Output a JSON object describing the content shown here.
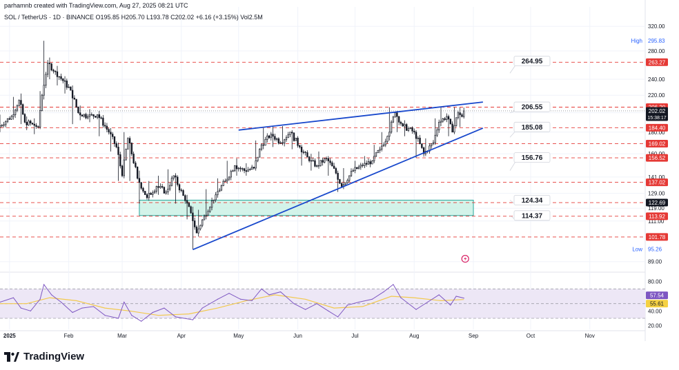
{
  "header": {
    "created_by": "parhamnb created with TradingView.com, Aug 27, 2025 08:21 UTC",
    "symbol_line": "SOL / TetherUS · 1D · BINANCE  O195.85 H205.70 L193.78 C202.02 +6.16 (+3.15%)  Vol2.5M"
  },
  "brand": {
    "name": "TradingView"
  },
  "colors": {
    "background": "#ffffff",
    "grid": "#f0f3fa",
    "candle": "#131722",
    "trendline": "#1848cc",
    "support_resistance": "#e53935",
    "zone_fill": "#c8f0e4",
    "zone_border": "#26a69a",
    "rsi_line": "#7e57c2",
    "rsi_ma": "#f2c94c",
    "rsi_band": "#ede7f6",
    "current_price_bg": "#131722",
    "level_tag_bg": "#e53935",
    "rsi_tag": "#7e57c2",
    "rsi_ma_tag": "#f5d142"
  },
  "chart_data": [
    {
      "type": "candlestick",
      "title": "SOL / TetherUS · 1D · BINANCE",
      "scale": "log",
      "ylim": [
        85,
        330
      ],
      "x_range": [
        "2024-12-27",
        "2025-11-30"
      ],
      "x_tick_labels": [
        {
          "date": "2025-01-01",
          "label": "2025"
        },
        {
          "date": "2025-02-01",
          "label": "Feb"
        },
        {
          "date": "2025-03-01",
          "label": "Mar"
        },
        {
          "date": "2025-04-01",
          "label": "Apr"
        },
        {
          "date": "2025-05-01",
          "label": "May"
        },
        {
          "date": "2025-06-01",
          "label": "Jun"
        },
        {
          "date": "2025-07-01",
          "label": "Jul"
        },
        {
          "date": "2025-08-01",
          "label": "Aug"
        },
        {
          "date": "2025-09-01",
          "label": "Sep"
        },
        {
          "date": "2025-10-01",
          "label": "Oct"
        },
        {
          "date": "2025-11-01",
          "label": "Nov"
        }
      ],
      "y_tick_labels": [
        "320.00",
        "280.00",
        "240.00",
        "220.00",
        "200.00",
        "180.00",
        "160.00",
        "141.00",
        "129.00",
        "119.00",
        "111.00",
        "89.00"
      ],
      "y_tick_values": [
        320,
        280,
        240,
        220,
        200,
        180,
        160,
        141,
        129,
        119,
        111,
        89
      ],
      "ohlc_anchors": [
        [
          "2024-12-27",
          185,
          198,
          180,
          196
        ],
        [
          "2025-01-03",
          196,
          218,
          195,
          214
        ],
        [
          "2025-01-07",
          214,
          222,
          188,
          190
        ],
        [
          "2025-01-10",
          190,
          196,
          182,
          188
        ],
        [
          "2025-01-14",
          188,
          194,
          178,
          185
        ],
        [
          "2025-01-17",
          185,
          225,
          183,
          220
        ],
        [
          "2025-01-19",
          220,
          295.83,
          215,
          262
        ],
        [
          "2025-01-22",
          262,
          270,
          240,
          250
        ],
        [
          "2025-01-26",
          250,
          258,
          232,
          238
        ],
        [
          "2025-01-30",
          238,
          244,
          222,
          226
        ],
        [
          "2025-02-03",
          226,
          232,
          188,
          200
        ],
        [
          "2025-02-07",
          200,
          208,
          192,
          196
        ],
        [
          "2025-02-12",
          196,
          204,
          190,
          198
        ],
        [
          "2025-02-17",
          198,
          202,
          176,
          180
        ],
        [
          "2025-02-23",
          180,
          184,
          162,
          166
        ],
        [
          "2025-02-27",
          166,
          170,
          138,
          142
        ],
        [
          "2025-03-02",
          142,
          180,
          140,
          174
        ],
        [
          "2025-03-05",
          174,
          176,
          138,
          140
        ],
        [
          "2025-03-10",
          140,
          146,
          122,
          126
        ],
        [
          "2025-03-15",
          126,
          138,
          124,
          134
        ],
        [
          "2025-03-20",
          134,
          142,
          128,
          130
        ],
        [
          "2025-03-25",
          130,
          147,
          128,
          142
        ],
        [
          "2025-03-29",
          142,
          144,
          122,
          124
        ],
        [
          "2025-04-04",
          124,
          128,
          112,
          116
        ],
        [
          "2025-04-07",
          116,
          120,
          95.26,
          104
        ],
        [
          "2025-04-10",
          104,
          118,
          102,
          114
        ],
        [
          "2025-04-14",
          114,
          132,
          112,
          128
        ],
        [
          "2025-04-20",
          128,
          140,
          126,
          138
        ],
        [
          "2025-04-25",
          138,
          154,
          136,
          150
        ],
        [
          "2025-04-30",
          150,
          156,
          142,
          146
        ],
        [
          "2025-05-05",
          146,
          152,
          142,
          148
        ],
        [
          "2025-05-10",
          148,
          172,
          146,
          168
        ],
        [
          "2025-05-14",
          168,
          184,
          164,
          178
        ],
        [
          "2025-05-19",
          178,
          186,
          166,
          170
        ],
        [
          "2025-05-24",
          170,
          186,
          168,
          180
        ],
        [
          "2025-05-29",
          180,
          182,
          164,
          166
        ],
        [
          "2025-06-03",
          166,
          168,
          150,
          154
        ],
        [
          "2025-06-08",
          154,
          160,
          146,
          150
        ],
        [
          "2025-06-12",
          150,
          162,
          148,
          156
        ],
        [
          "2025-06-17",
          156,
          158,
          142,
          144
        ],
        [
          "2025-06-22",
          144,
          146,
          130,
          134
        ],
        [
          "2025-06-25",
          134,
          148,
          132,
          146
        ],
        [
          "2025-07-01",
          146,
          154,
          144,
          150
        ],
        [
          "2025-07-06",
          150,
          158,
          148,
          154
        ],
        [
          "2025-07-11",
          154,
          168,
          152,
          164
        ],
        [
          "2025-07-15",
          164,
          180,
          162,
          176
        ],
        [
          "2025-07-19",
          176,
          206.2,
          172,
          200
        ],
        [
          "2025-07-23",
          200,
          202,
          180,
          186
        ],
        [
          "2025-07-27",
          186,
          192,
          176,
          180
        ],
        [
          "2025-08-02",
          180,
          182,
          156.52,
          160
        ],
        [
          "2025-08-07",
          160,
          174,
          158,
          170
        ],
        [
          "2025-08-12",
          170,
          194,
          168,
          190
        ],
        [
          "2025-08-15",
          190,
          206,
          186,
          196
        ],
        [
          "2025-08-19",
          196,
          198,
          176,
          180
        ],
        [
          "2025-08-22",
          180,
          206,
          178,
          200
        ],
        [
          "2025-08-25",
          200,
          205.7,
          185,
          195.85
        ],
        [
          "2025-08-27",
          195.85,
          205.7,
          193.78,
          202.02
        ]
      ],
      "horizontal_levels": [
        263.27,
        206.2,
        184.4,
        169.02,
        156.52,
        137.02,
        122.69,
        113.92,
        101.78
      ],
      "level_tags": [
        {
          "price": 263.27,
          "label": "263.27"
        },
        {
          "price": 206.2,
          "label": "206.20"
        },
        {
          "price": 184.4,
          "label": "184.40"
        },
        {
          "price": 169.02,
          "label": "169.02"
        },
        {
          "price": 156.52,
          "label": "156.52"
        },
        {
          "price": 137.02,
          "label": "137.02"
        },
        {
          "price": 113.92,
          "label": "113.92"
        },
        {
          "price": 101.78,
          "label": "101.78"
        }
      ],
      "dark_tags": [
        {
          "price": 122.69,
          "label": "122.69"
        }
      ],
      "current_price": {
        "price": 202.02,
        "label": "202.02",
        "countdown": "15:38:17"
      },
      "high": {
        "label": "High",
        "price": 295.83,
        "value_label": "295.83"
      },
      "low": {
        "label": "Low",
        "price": 95.26,
        "value_label": "95.26"
      },
      "zone": {
        "from_date": "2025-03-10",
        "to_date": "2025-09-01",
        "top": 124.34,
        "bottom": 114.37
      },
      "trendlines": [
        {
          "from": [
            "2025-04-07",
            95
          ],
          "to": [
            "2025-09-06",
            184
          ]
        },
        {
          "from": [
            "2025-05-01",
            182
          ],
          "to": [
            "2025-09-06",
            212
          ]
        }
      ],
      "callouts": [
        {
          "label": "264.95",
          "price": 264.95,
          "anchor_price": 248
        },
        {
          "label": "206.55",
          "price": 206.55,
          "anchor_price": 200
        },
        {
          "label": "185.08",
          "price": 185.08,
          "anchor_price": 175
        },
        {
          "label": "156.76",
          "price": 156.76,
          "anchor_price": 146
        },
        {
          "label": "124.34",
          "price": 124.34,
          "anchor_price": 124.34
        },
        {
          "label": "114.37",
          "price": 114.37,
          "anchor_price": 114.37
        }
      ]
    },
    {
      "type": "line",
      "title": "RSI",
      "ylim": [
        15,
        90
      ],
      "y_tick_labels": [
        "80.00",
        "60.00",
        "40.00",
        "20.00"
      ],
      "y_tick_values": [
        80,
        60,
        40,
        20
      ],
      "bands": [
        70,
        50,
        30
      ],
      "series": [
        {
          "key": "rsi",
          "points": [
            [
              "2024-12-27",
              52
            ],
            [
              "2025-01-03",
              58
            ],
            [
              "2025-01-07",
              44
            ],
            [
              "2025-01-12",
              40
            ],
            [
              "2025-01-17",
              56
            ],
            [
              "2025-01-19",
              76
            ],
            [
              "2025-01-23",
              62
            ],
            [
              "2025-01-28",
              52
            ],
            [
              "2025-02-03",
              38
            ],
            [
              "2025-02-08",
              44
            ],
            [
              "2025-02-14",
              46
            ],
            [
              "2025-02-20",
              34
            ],
            [
              "2025-02-27",
              30
            ],
            [
              "2025-03-02",
              52
            ],
            [
              "2025-03-06",
              34
            ],
            [
              "2025-03-11",
              26
            ],
            [
              "2025-03-17",
              38
            ],
            [
              "2025-03-23",
              44
            ],
            [
              "2025-03-29",
              32
            ],
            [
              "2025-04-07",
              28
            ],
            [
              "2025-04-12",
              44
            ],
            [
              "2025-04-20",
              56
            ],
            [
              "2025-04-26",
              64
            ],
            [
              "2025-05-02",
              56
            ],
            [
              "2025-05-08",
              54
            ],
            [
              "2025-05-13",
              70
            ],
            [
              "2025-05-17",
              62
            ],
            [
              "2025-05-23",
              66
            ],
            [
              "2025-05-30",
              50
            ],
            [
              "2025-06-05",
              42
            ],
            [
              "2025-06-11",
              50
            ],
            [
              "2025-06-17",
              40
            ],
            [
              "2025-06-22",
              32
            ],
            [
              "2025-06-27",
              48
            ],
            [
              "2025-07-03",
              52
            ],
            [
              "2025-07-10",
              56
            ],
            [
              "2025-07-16",
              66
            ],
            [
              "2025-07-21",
              76
            ],
            [
              "2025-07-25",
              58
            ],
            [
              "2025-08-02",
              42
            ],
            [
              "2025-08-08",
              52
            ],
            [
              "2025-08-14",
              62
            ],
            [
              "2025-08-20",
              48
            ],
            [
              "2025-08-23",
              60
            ],
            [
              "2025-08-27",
              57.54
            ]
          ]
        },
        {
          "key": "rsi_ma",
          "points": [
            [
              "2024-12-27",
              50
            ],
            [
              "2025-01-10",
              50
            ],
            [
              "2025-01-22",
              58
            ],
            [
              "2025-02-05",
              54
            ],
            [
              "2025-02-20",
              44
            ],
            [
              "2025-03-05",
              40
            ],
            [
              "2025-03-20",
              34
            ],
            [
              "2025-04-05",
              36
            ],
            [
              "2025-04-20",
              44
            ],
            [
              "2025-05-05",
              54
            ],
            [
              "2025-05-20",
              62
            ],
            [
              "2025-06-05",
              56
            ],
            [
              "2025-06-20",
              44
            ],
            [
              "2025-07-05",
              46
            ],
            [
              "2025-07-20",
              60
            ],
            [
              "2025-08-01",
              58
            ],
            [
              "2025-08-15",
              54
            ],
            [
              "2025-08-27",
              55.61
            ]
          ]
        }
      ],
      "tags": [
        {
          "value": 57.54,
          "label": "57.54"
        },
        {
          "value": 55.61,
          "label": "55.61"
        }
      ]
    }
  ]
}
